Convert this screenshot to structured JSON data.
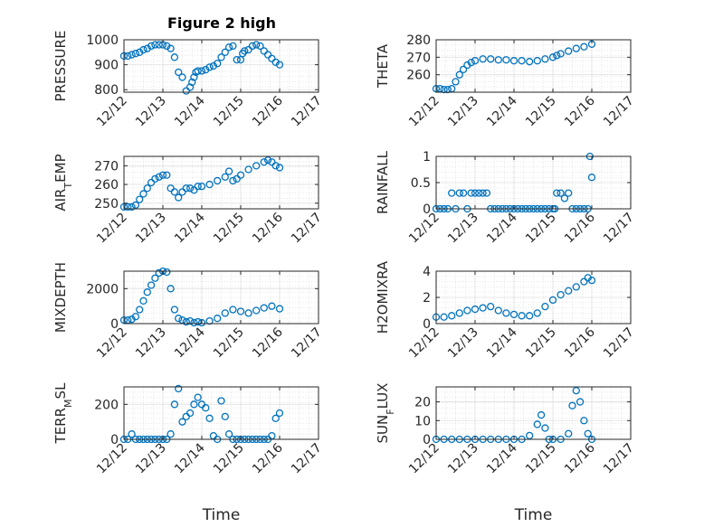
{
  "figure_title": "Figure 2 high",
  "marker_color": "#0072BD",
  "chart_data": [
    {
      "type": "scatter",
      "title": "Figure 2 high",
      "ylabel": "PRESSURE",
      "ylim": [
        790,
        1000
      ],
      "yticks": [
        800,
        900,
        1000
      ],
      "grid": true,
      "xlim": [
        0,
        5
      ],
      "xticklabels": [
        "12/12",
        "12/13",
        "12/14",
        "12/15",
        "12/16",
        "12/17"
      ],
      "xlabel": "",
      "x": [
        0,
        0.1,
        0.2,
        0.3,
        0.4,
        0.5,
        0.6,
        0.7,
        0.8,
        0.9,
        1.0,
        1.1,
        1.2,
        1.3,
        1.4,
        1.5,
        1.6,
        1.7,
        1.75,
        1.8,
        1.85,
        1.9,
        2.0,
        2.1,
        2.2,
        2.3,
        2.4,
        2.5,
        2.6,
        2.7,
        2.8,
        2.9,
        3.0,
        3.05,
        3.1,
        3.2,
        3.3,
        3.4,
        3.5,
        3.6,
        3.7,
        3.8,
        3.9,
        4.0
      ],
      "y": [
        935,
        935,
        940,
        945,
        950,
        960,
        965,
        975,
        980,
        980,
        980,
        975,
        965,
        930,
        870,
        850,
        795,
        810,
        830,
        850,
        870,
        875,
        875,
        880,
        890,
        895,
        905,
        930,
        950,
        970,
        975,
        920,
        920,
        945,
        955,
        960,
        975,
        980,
        975,
        955,
        940,
        925,
        910,
        900
      ]
    },
    {
      "type": "scatter",
      "ylabel": "THETA",
      "ylim": [
        250,
        280
      ],
      "yticks": [
        260,
        270,
        280
      ],
      "grid": true,
      "xlim": [
        0,
        5
      ],
      "xticklabels": [
        "12/12",
        "12/13",
        "12/14",
        "12/15",
        "12/16",
        "12/17"
      ],
      "xlabel": "",
      "x": [
        0,
        0.1,
        0.2,
        0.3,
        0.4,
        0.5,
        0.6,
        0.7,
        0.8,
        0.9,
        1.0,
        1.2,
        1.4,
        1.6,
        1.8,
        2.0,
        2.2,
        2.4,
        2.6,
        2.8,
        3.0,
        3.1,
        3.2,
        3.4,
        3.6,
        3.8,
        4.0
      ],
      "y": [
        252,
        252,
        251.5,
        251.5,
        252,
        256,
        260,
        263,
        265.5,
        267,
        268,
        269,
        269,
        268.5,
        268.5,
        268,
        268,
        267.5,
        268,
        269,
        270,
        271,
        272,
        273.5,
        275,
        276,
        277.5
      ]
    },
    {
      "type": "scatter",
      "ylabel": "AIR_TEMP",
      "ylim": [
        247,
        275
      ],
      "yticks": [
        250,
        260,
        270
      ],
      "grid": true,
      "xlim": [
        0,
        5
      ],
      "xticklabels": [
        "12/12",
        "12/13",
        "12/14",
        "12/15",
        "12/16",
        "12/17"
      ],
      "xlabel": "",
      "x": [
        0,
        0.1,
        0.2,
        0.3,
        0.4,
        0.5,
        0.6,
        0.7,
        0.8,
        0.9,
        1.0,
        1.1,
        1.2,
        1.3,
        1.4,
        1.5,
        1.6,
        1.7,
        1.8,
        1.9,
        2.0,
        2.2,
        2.4,
        2.6,
        2.7,
        2.8,
        2.9,
        3.0,
        3.2,
        3.4,
        3.6,
        3.7,
        3.8,
        3.9,
        4.0
      ],
      "y": [
        248,
        248,
        248,
        249,
        252,
        255,
        258,
        261,
        263,
        264,
        265,
        265,
        258,
        256,
        253,
        256,
        258,
        258,
        257,
        259,
        259,
        260,
        262,
        264,
        267,
        262,
        263,
        265,
        268,
        270,
        272,
        273,
        272,
        270,
        269
      ]
    },
    {
      "type": "scatter",
      "ylabel": "RAINFALL",
      "ylim": [
        0,
        1
      ],
      "yticks": [
        0,
        0.5,
        1
      ],
      "grid": true,
      "xlim": [
        0,
        5
      ],
      "xticklabels": [
        "12/12",
        "12/13",
        "12/14",
        "12/15",
        "12/16",
        "12/17"
      ],
      "xlabel": "",
      "x": [
        0,
        0.1,
        0.2,
        0.3,
        0.4,
        0.5,
        0.6,
        0.7,
        0.8,
        0.9,
        1.0,
        1.1,
        1.2,
        1.3,
        1.4,
        1.5,
        1.6,
        1.7,
        1.8,
        1.9,
        2.0,
        2.1,
        2.2,
        2.3,
        2.4,
        2.5,
        2.6,
        2.7,
        2.8,
        2.9,
        3.0,
        3.05,
        3.1,
        3.2,
        3.3,
        3.4,
        3.5,
        3.6,
        3.7,
        3.8,
        3.9,
        3.95,
        4.0
      ],
      "y": [
        0,
        0,
        0,
        0,
        0.3,
        0,
        0.3,
        0.3,
        0,
        0.3,
        0.3,
        0.3,
        0.3,
        0.3,
        0,
        0,
        0,
        0,
        0,
        0,
        0,
        0,
        0,
        0,
        0,
        0,
        0,
        0,
        0,
        0,
        0,
        0,
        0.3,
        0.3,
        0.2,
        0.3,
        0,
        0,
        0,
        0,
        0,
        1,
        0.6
      ]
    },
    {
      "type": "scatter",
      "ylabel": "MIXDEPTH",
      "ylim": [
        0,
        3000
      ],
      "yticks": [
        0,
        2000
      ],
      "grid": true,
      "xlim": [
        0,
        5
      ],
      "xticklabels": [
        "12/12",
        "12/13",
        "12/14",
        "12/15",
        "12/16",
        "12/17"
      ],
      "xlabel": "",
      "x": [
        0,
        0.1,
        0.2,
        0.3,
        0.4,
        0.5,
        0.6,
        0.7,
        0.8,
        0.9,
        1.0,
        1.1,
        1.2,
        1.3,
        1.4,
        1.5,
        1.6,
        1.7,
        1.8,
        1.9,
        2.0,
        2.2,
        2.4,
        2.6,
        2.8,
        3.0,
        3.2,
        3.4,
        3.6,
        3.8,
        4.0
      ],
      "y": [
        200,
        200,
        250,
        400,
        800,
        1300,
        1800,
        2200,
        2600,
        2900,
        3000,
        2950,
        2000,
        800,
        300,
        200,
        100,
        150,
        50,
        100,
        50,
        150,
        300,
        600,
        800,
        700,
        600,
        750,
        900,
        1000,
        850
      ]
    },
    {
      "type": "scatter",
      "ylabel": "H2OMIXRA",
      "ylim": [
        0,
        4
      ],
      "yticks": [
        0,
        2,
        4
      ],
      "grid": true,
      "xlim": [
        0,
        5
      ],
      "xticklabels": [
        "12/12",
        "12/13",
        "12/14",
        "12/15",
        "12/16",
        "12/17"
      ],
      "xlabel": "",
      "x": [
        0,
        0.2,
        0.4,
        0.6,
        0.8,
        1.0,
        1.2,
        1.4,
        1.6,
        1.8,
        2.0,
        2.2,
        2.4,
        2.6,
        2.8,
        3.0,
        3.2,
        3.4,
        3.6,
        3.8,
        3.9,
        4.0
      ],
      "y": [
        0.5,
        0.5,
        0.6,
        0.8,
        1.0,
        1.1,
        1.2,
        1.3,
        1.0,
        0.8,
        0.7,
        0.6,
        0.6,
        0.8,
        1.3,
        1.8,
        2.2,
        2.5,
        2.8,
        3.2,
        3.5,
        3.3
      ]
    },
    {
      "type": "scatter",
      "ylabel": "TERR_MSL",
      "ylim": [
        0,
        300
      ],
      "yticks": [
        0,
        200
      ],
      "grid": true,
      "xlim": [
        0,
        5
      ],
      "xticklabels": [
        "12/12",
        "12/13",
        "12/14",
        "12/15",
        "12/16",
        "12/17"
      ],
      "xlabel": "Time",
      "x": [
        0,
        0.1,
        0.2,
        0.3,
        0.4,
        0.5,
        0.6,
        0.7,
        0.8,
        0.9,
        1.0,
        1.1,
        1.2,
        1.3,
        1.4,
        1.5,
        1.6,
        1.7,
        1.8,
        1.9,
        2.0,
        2.1,
        2.2,
        2.3,
        2.4,
        2.5,
        2.6,
        2.7,
        2.8,
        2.9,
        3.0,
        3.1,
        3.2,
        3.3,
        3.4,
        3.5,
        3.6,
        3.7,
        3.8,
        3.9,
        4.0
      ],
      "y": [
        0,
        0,
        30,
        0,
        0,
        0,
        0,
        0,
        0,
        0,
        0,
        0,
        30,
        200,
        290,
        100,
        130,
        150,
        200,
        240,
        200,
        180,
        120,
        20,
        0,
        220,
        130,
        30,
        0,
        0,
        0,
        0,
        0,
        0,
        0,
        0,
        0,
        0,
        20,
        120,
        150
      ]
    },
    {
      "type": "scatter",
      "ylabel": "SUN_FLUX",
      "ylim": [
        0,
        28
      ],
      "yticks": [
        0,
        10,
        20
      ],
      "grid": true,
      "xlim": [
        0,
        5
      ],
      "xticklabels": [
        "12/12",
        "12/13",
        "12/14",
        "12/15",
        "12/16",
        "12/17"
      ],
      "xlabel": "Time",
      "x": [
        0,
        0.2,
        0.4,
        0.6,
        0.8,
        1.0,
        1.2,
        1.4,
        1.6,
        1.8,
        2.0,
        2.2,
        2.4,
        2.6,
        2.7,
        2.8,
        2.9,
        3.0,
        3.2,
        3.4,
        3.5,
        3.6,
        3.7,
        3.8,
        3.9,
        4.0
      ],
      "y": [
        0,
        0,
        0,
        0,
        0,
        0,
        0,
        0,
        0,
        0,
        0,
        0,
        2,
        8,
        13,
        6,
        0,
        0,
        0,
        3,
        18,
        26,
        20,
        10,
        3,
        0
      ]
    }
  ]
}
